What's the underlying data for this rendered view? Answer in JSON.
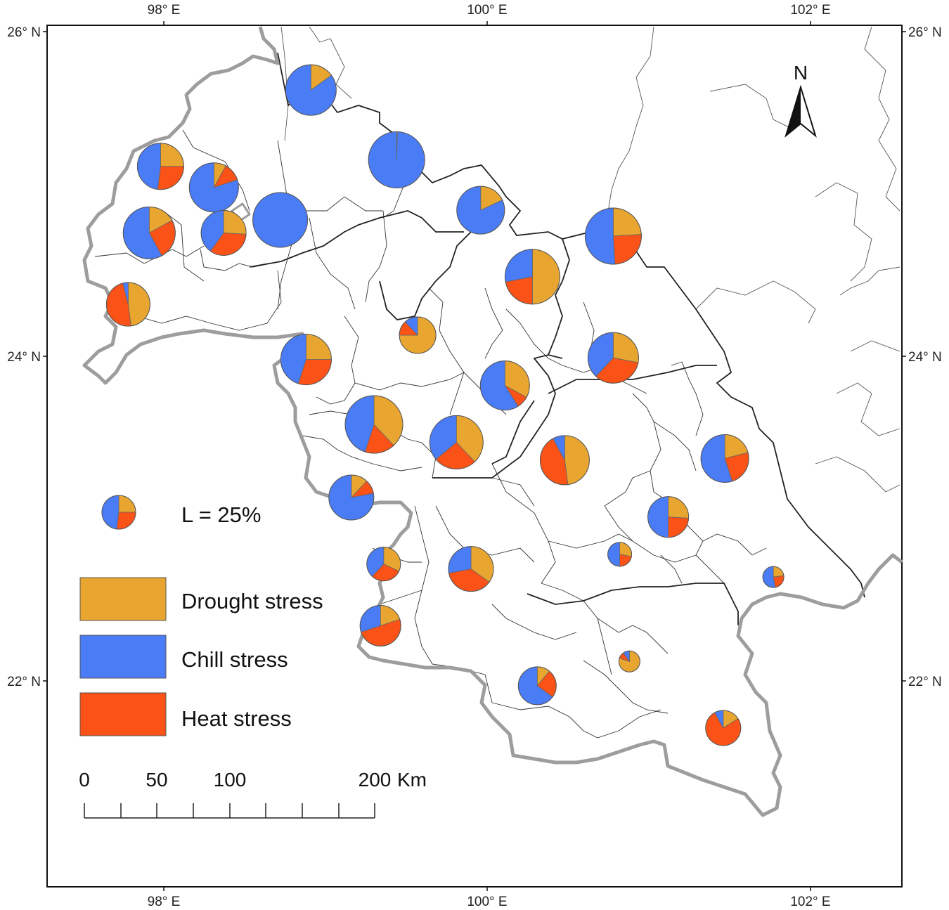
{
  "axes": {
    "top_labels": [
      "98° E",
      "100° E",
      "102° E"
    ],
    "bottom_labels": [
      "98° E",
      "100° E",
      "102° E"
    ],
    "left_labels": [
      "26° N",
      "24° N",
      "22° N"
    ],
    "right_labels": [
      "26° N",
      "24° N",
      "22° N"
    ]
  },
  "north_arrow": {
    "label": "N"
  },
  "size_legend": {
    "label": "L = 25%"
  },
  "legend": {
    "items": [
      {
        "label": "Drought stress",
        "color": "#E8A630"
      },
      {
        "label": "Chill stress",
        "color": "#4A7CF6"
      },
      {
        "label": "Heat stress",
        "color": "#FA5217"
      }
    ]
  },
  "scale_bar": {
    "labels": [
      "0",
      "50",
      "100",
      "200"
    ],
    "unit": "Km"
  },
  "colors": {
    "drought": "#E8A630",
    "chill": "#4A7CF6",
    "heat": "#FA5217",
    "region_border": "#aaaaaa",
    "county_line": "#333333"
  },
  "pies_note": "Pie shares are estimated from the image",
  "pies": [
    {
      "name": "pie-01",
      "lon": 97.98,
      "lat": 25.17,
      "shares": [
        0.25,
        0.48,
        0.27
      ]
    },
    {
      "name": "pie-02",
      "lon": 98.31,
      "lat": 25.04,
      "shares": [
        0.08,
        0.8,
        0.12
      ]
    },
    {
      "name": "pie-03",
      "lon": 97.91,
      "lat": 24.76,
      "shares": [
        0.17,
        0.58,
        0.25
      ]
    },
    {
      "name": "pie-04",
      "lon": 98.37,
      "lat": 24.76,
      "shares": [
        0.26,
        0.4,
        0.34
      ]
    },
    {
      "name": "pie-05",
      "lon": 98.72,
      "lat": 24.84,
      "shares": [
        0.0,
        1.0,
        0.0
      ]
    },
    {
      "name": "pie-06",
      "lon": 97.78,
      "lat": 24.32,
      "shares": [
        0.48,
        0.04,
        0.48
      ]
    },
    {
      "name": "pie-07",
      "lon": 98.91,
      "lat": 25.64,
      "shares": [
        0.15,
        0.85,
        0.0
      ]
    },
    {
      "name": "pie-08",
      "lon": 99.44,
      "lat": 25.21,
      "shares": [
        0.005,
        0.995,
        0.0
      ]
    },
    {
      "name": "pie-09",
      "lon": 99.96,
      "lat": 24.9,
      "shares": [
        0.18,
        0.82,
        0.0
      ]
    },
    {
      "name": "pie-10",
      "lon": 100.28,
      "lat": 24.49,
      "shares": [
        0.5,
        0.28,
        0.22
      ]
    },
    {
      "name": "pie-11",
      "lon": 100.78,
      "lat": 24.74,
      "shares": [
        0.24,
        0.51,
        0.25
      ]
    },
    {
      "name": "pie-12",
      "lon": 99.57,
      "lat": 24.13,
      "shares": [
        0.75,
        0.12,
        0.13
      ]
    },
    {
      "name": "pie-13",
      "lon": 98.88,
      "lat": 23.98,
      "shares": [
        0.25,
        0.45,
        0.3
      ]
    },
    {
      "name": "pie-14",
      "lon": 100.11,
      "lat": 23.82,
      "shares": [
        0.33,
        0.59,
        0.08
      ]
    },
    {
      "name": "pie-15",
      "lon": 100.78,
      "lat": 23.99,
      "shares": [
        0.28,
        0.38,
        0.34
      ]
    },
    {
      "name": "pie-16",
      "lon": 99.3,
      "lat": 23.58,
      "shares": [
        0.38,
        0.45,
        0.17
      ]
    },
    {
      "name": "pie-17",
      "lon": 99.81,
      "lat": 23.47,
      "shares": [
        0.38,
        0.36,
        0.26
      ]
    },
    {
      "name": "pie-18",
      "lon": 100.48,
      "lat": 23.36,
      "shares": [
        0.48,
        0.08,
        0.44
      ]
    },
    {
      "name": "pie-19",
      "lon": 101.47,
      "lat": 23.37,
      "shares": [
        0.21,
        0.55,
        0.24
      ]
    },
    {
      "name": "pie-20",
      "lon": 99.16,
      "lat": 23.13,
      "shares": [
        0.12,
        0.78,
        0.1
      ]
    },
    {
      "name": "pie-21",
      "lon": 101.12,
      "lat": 23.01,
      "shares": [
        0.26,
        0.5,
        0.24
      ]
    },
    {
      "name": "pie-22",
      "lon": 99.36,
      "lat": 22.72,
      "shares": [
        0.32,
        0.38,
        0.3
      ]
    },
    {
      "name": "pie-23",
      "lon": 99.9,
      "lat": 22.69,
      "shares": [
        0.35,
        0.28,
        0.37
      ]
    },
    {
      "name": "pie-24",
      "lon": 100.82,
      "lat": 22.78,
      "shares": [
        0.28,
        0.5,
        0.22
      ]
    },
    {
      "name": "pie-25",
      "lon": 101.77,
      "lat": 22.64,
      "shares": [
        0.23,
        0.53,
        0.24
      ]
    },
    {
      "name": "pie-26",
      "lon": 99.34,
      "lat": 22.34,
      "shares": [
        0.2,
        0.3,
        0.5
      ]
    },
    {
      "name": "pie-27",
      "lon": 100.88,
      "lat": 22.12,
      "shares": [
        0.8,
        0.1,
        0.1
      ]
    },
    {
      "name": "pie-28",
      "lon": 100.31,
      "lat": 21.97,
      "shares": [
        0.11,
        0.65,
        0.24
      ]
    },
    {
      "name": "pie-29",
      "lon": 101.46,
      "lat": 21.71,
      "shares": [
        0.16,
        0.08,
        0.76
      ]
    }
  ]
}
